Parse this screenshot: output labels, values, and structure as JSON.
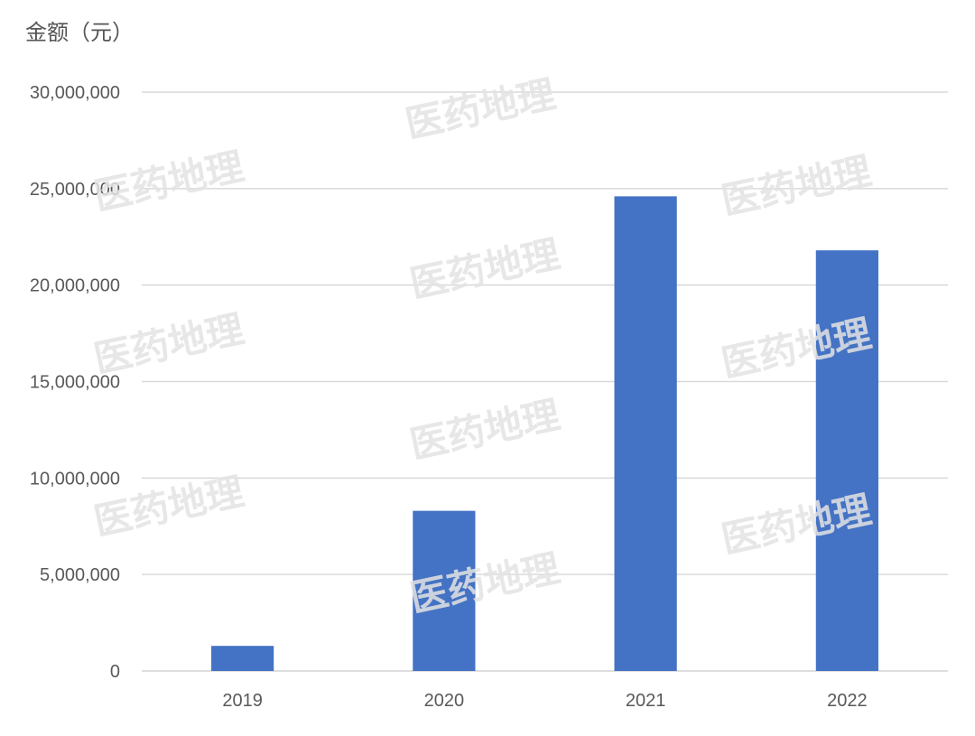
{
  "chart_data": {
    "type": "bar",
    "ylabel": "金额（元）",
    "xlabel": "",
    "title": "",
    "categories": [
      "2019",
      "2020",
      "2021",
      "2022"
    ],
    "values": [
      1300000,
      8300000,
      24600000,
      21800000
    ],
    "ylim": [
      0,
      30000000
    ],
    "yticks": [
      "0",
      "5,000,000",
      "10,000,000",
      "15,000,000",
      "20,000,000",
      "25,000,000",
      "30,000,000"
    ],
    "grid": true,
    "legend": "none",
    "bar_color": "#4472C4",
    "grid_color": "#D9D9D9"
  },
  "watermark": {
    "text": "医药地理",
    "color": "#E3E3E3"
  }
}
